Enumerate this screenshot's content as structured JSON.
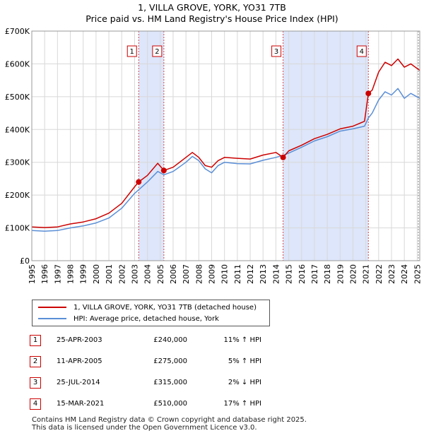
{
  "title_line1": "1, VILLA GROVE, YORK, YO31 7TB",
  "title_line2": "Price paid vs. HM Land Registry's House Price Index (HPI)",
  "colors": {
    "property": "#cc0000",
    "hpi": "#5b8fd6",
    "shade": "#dde6fa",
    "marker": "#cc0000"
  },
  "chart_data": {
    "type": "line",
    "title": "Price paid vs. HM Land Registry's House Price Index (HPI)",
    "xlim": [
      1995.0,
      2025.2
    ],
    "ylim": [
      0,
      700000
    ],
    "x_ticks": [
      1995,
      1996,
      1997,
      1998,
      1999,
      2000,
      2001,
      2002,
      2003,
      2004,
      2005,
      2006,
      2007,
      2008,
      2009,
      2010,
      2011,
      2012,
      2013,
      2014,
      2015,
      2016,
      2017,
      2018,
      2019,
      2020,
      2021,
      2022,
      2023,
      2024,
      2025
    ],
    "y_ticks": [
      {
        "value": 0,
        "label": "£0"
      },
      {
        "value": 100000,
        "label": "£100K"
      },
      {
        "value": 200000,
        "label": "£200K"
      },
      {
        "value": 300000,
        "label": "£300K"
      },
      {
        "value": 400000,
        "label": "£400K"
      },
      {
        "value": 500000,
        "label": "£500K"
      },
      {
        "value": 600000,
        "label": "£600K"
      },
      {
        "value": 700000,
        "label": "£700K"
      }
    ],
    "shaded_ranges": [
      [
        2003.32,
        2005.28
      ],
      [
        2014.56,
        2021.2
      ]
    ],
    "series": [
      {
        "name": "1, VILLA GROVE, YORK, YO31 7TB (detached house)",
        "x": [
          1995,
          1996,
          1997,
          1998,
          1999,
          2000,
          2001,
          2002,
          2003,
          2003.32,
          2004,
          2004.8,
          2005.28,
          2006,
          2007,
          2007.5,
          2008,
          2008.5,
          2009,
          2009.5,
          2010,
          2011,
          2012,
          2013,
          2014,
          2014.56,
          2015,
          2016,
          2017,
          2018,
          2019,
          2020,
          2020.9,
          2021.2,
          2021.5,
          2022,
          2022.5,
          2023,
          2023.5,
          2024,
          2024.5,
          2025.2
        ],
        "values": [
          103000,
          101000,
          103000,
          112000,
          118000,
          128000,
          145000,
          175000,
          225000,
          240000,
          260000,
          297000,
          275000,
          285000,
          315000,
          330000,
          315000,
          290000,
          285000,
          305000,
          315000,
          312000,
          310000,
          322000,
          330000,
          315000,
          335000,
          352000,
          372000,
          385000,
          402000,
          410000,
          425000,
          510000,
          520000,
          575000,
          605000,
          595000,
          615000,
          590000,
          600000,
          580000
        ]
      },
      {
        "name": "HPI: Average price, detached house, York",
        "x": [
          1995,
          1996,
          1997,
          1998,
          1999,
          2000,
          2001,
          2002,
          2003,
          2003.32,
          2004,
          2004.8,
          2005.28,
          2006,
          2007,
          2007.5,
          2008,
          2008.5,
          2009,
          2009.5,
          2010,
          2011,
          2012,
          2013,
          2014,
          2014.56,
          2015,
          2016,
          2017,
          2018,
          2019,
          2020,
          2020.9,
          2021.2,
          2021.5,
          2022,
          2022.5,
          2023,
          2023.5,
          2024,
          2024.5,
          2025.2
        ],
        "values": [
          92000,
          90000,
          92000,
          100000,
          106000,
          115000,
          130000,
          160000,
          205000,
          216000,
          240000,
          272000,
          262000,
          272000,
          300000,
          318000,
          305000,
          280000,
          268000,
          290000,
          300000,
          296000,
          295000,
          306000,
          315000,
          321000,
          328000,
          346000,
          365000,
          378000,
          395000,
          402000,
          410000,
          435000,
          450000,
          490000,
          515000,
          505000,
          525000,
          495000,
          510000,
          495000
        ]
      }
    ],
    "sales": [
      {
        "num": "1",
        "x": 2003.32,
        "value": 240000
      },
      {
        "num": "2",
        "x": 2005.28,
        "value": 275000
      },
      {
        "num": "3",
        "x": 2014.56,
        "value": 315000
      },
      {
        "num": "4",
        "x": 2021.2,
        "value": 510000
      }
    ]
  },
  "legend": {
    "property_label": "1, VILLA GROVE, YORK, YO31 7TB (detached house)",
    "hpi_label": "HPI: Average price, detached house, York"
  },
  "transactions": [
    {
      "num": "1",
      "date": "25-APR-2003",
      "price": "£240,000",
      "hpi": "11% ↑ HPI"
    },
    {
      "num": "2",
      "date": "11-APR-2005",
      "price": "£275,000",
      "hpi": "5% ↑ HPI"
    },
    {
      "num": "3",
      "date": "25-JUL-2014",
      "price": "£315,000",
      "hpi": "2% ↓ HPI"
    },
    {
      "num": "4",
      "date": "15-MAR-2021",
      "price": "£510,000",
      "hpi": "17% ↑ HPI"
    }
  ],
  "footer": {
    "line1": "Contains HM Land Registry data © Crown copyright and database right 2025.",
    "line2": "This data is licensed under the Open Government Licence v3.0."
  }
}
